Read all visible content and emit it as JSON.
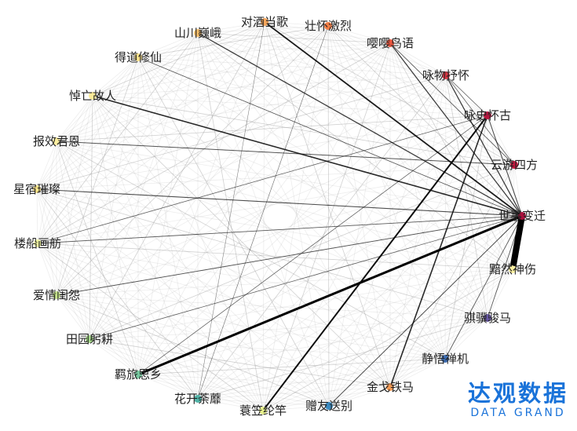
{
  "nodes": [
    {
      "name": "对酒当歌",
      "color": "#f5a65b"
    },
    {
      "name": "壮怀激烈",
      "color": "#f27d45"
    },
    {
      "name": "嘤嘤鸟语",
      "color": "#e8553e"
    },
    {
      "name": "咏物抒怀",
      "color": "#d93642"
    },
    {
      "name": "咏史怀古",
      "color": "#b5163f"
    },
    {
      "name": "云游四方",
      "color": "#c4193f"
    },
    {
      "name": "世事变迁",
      "color": "#a8103c"
    },
    {
      "name": "黯然神伤",
      "color": "#fbf0a0"
    },
    {
      "name": "骐骥骏马",
      "color": "#6a5aa8"
    },
    {
      "name": "静悟禅机",
      "color": "#3d6cb0"
    },
    {
      "name": "金戈铁马",
      "color": "#f49a55"
    },
    {
      "name": "赠友送别",
      "color": "#3a8ac0"
    },
    {
      "name": "蓑笠纶竿",
      "color": "#e8f38c"
    },
    {
      "name": "花开荼蘼",
      "color": "#52b4a8"
    },
    {
      "name": "羁旅思乡",
      "color": "#75c79e"
    },
    {
      "name": "田园躬耕",
      "color": "#a6d98a"
    },
    {
      "name": "爱情闺怨",
      "color": "#c8e68c"
    },
    {
      "name": "楼船画舫",
      "color": "#eef3a0"
    },
    {
      "name": "星宿璀璨",
      "color": "#fbe58a"
    },
    {
      "name": "报效君恩",
      "color": "#fcefa0"
    },
    {
      "name": "悼亡故人",
      "color": "#fbea98"
    },
    {
      "name": "得道修仙",
      "color": "#fbe08a"
    },
    {
      "name": "山川巍峨",
      "color": "#f9c06a"
    }
  ],
  "strong_edges": [
    {
      "source": "世事变迁",
      "target": "黯然神伤",
      "weight": 8
    },
    {
      "source": "世事变迁",
      "target": "羁旅思乡",
      "weight": 3
    },
    {
      "source": "咏史怀古",
      "target": "蓑笠纶竿",
      "weight": 2
    },
    {
      "source": "咏史怀古",
      "target": "金戈铁马",
      "weight": 1.6
    },
    {
      "source": "世事变迁",
      "target": "对酒当歌",
      "weight": 1.8
    },
    {
      "source": "世事变迁",
      "target": "悼亡故人",
      "weight": 1.6
    },
    {
      "source": "世事变迁",
      "target": "山川巍峨",
      "weight": 1.3
    },
    {
      "source": "世事变迁",
      "target": "嘤嘤鸟语",
      "weight": 1.3
    },
    {
      "source": "世事变迁",
      "target": "咏物抒怀",
      "weight": 1.3
    },
    {
      "source": "世事变迁",
      "target": "星宿璀璨",
      "weight": 1.1
    },
    {
      "source": "世事变迁",
      "target": "咏史怀古",
      "weight": 1.1
    },
    {
      "source": "世事变迁",
      "target": "赠友送别",
      "weight": 1
    },
    {
      "source": "世事变迁",
      "target": "楼船画舫",
      "weight": 0.9
    },
    {
      "source": "世事变迁",
      "target": "爱情闺怨",
      "weight": 0.9
    },
    {
      "source": "世事变迁",
      "target": "田园躬耕",
      "weight": 0.8
    },
    {
      "source": "世事变迁",
      "target": "骐骥骏马",
      "weight": 0.9
    },
    {
      "source": "世事变迁",
      "target": "静悟禅机",
      "weight": 0.9
    },
    {
      "source": "世事变迁",
      "target": "得道修仙",
      "weight": 0.8
    },
    {
      "source": "云游四方",
      "target": "报效君恩",
      "weight": 1
    },
    {
      "source": "云游四方",
      "target": "嘤嘤鸟语",
      "weight": 0.9
    },
    {
      "source": "云游四方",
      "target": "咏物抒怀",
      "weight": 0.8
    },
    {
      "source": "咏史怀古",
      "target": "楼船画舫",
      "weight": 0.8
    },
    {
      "source": "咏史怀古",
      "target": "羁旅思乡",
      "weight": 0.7
    },
    {
      "source": "咏物抒怀",
      "target": "咏史怀古",
      "weight": 0.8
    },
    {
      "source": "壮怀激烈",
      "target": "花开荼蘼",
      "weight": 0.6
    },
    {
      "source": "对酒当歌",
      "target": "花开荼蘼",
      "weight": 0.5
    }
  ],
  "logo": {
    "cn": "达观数据",
    "en": "DATA GRAND"
  }
}
